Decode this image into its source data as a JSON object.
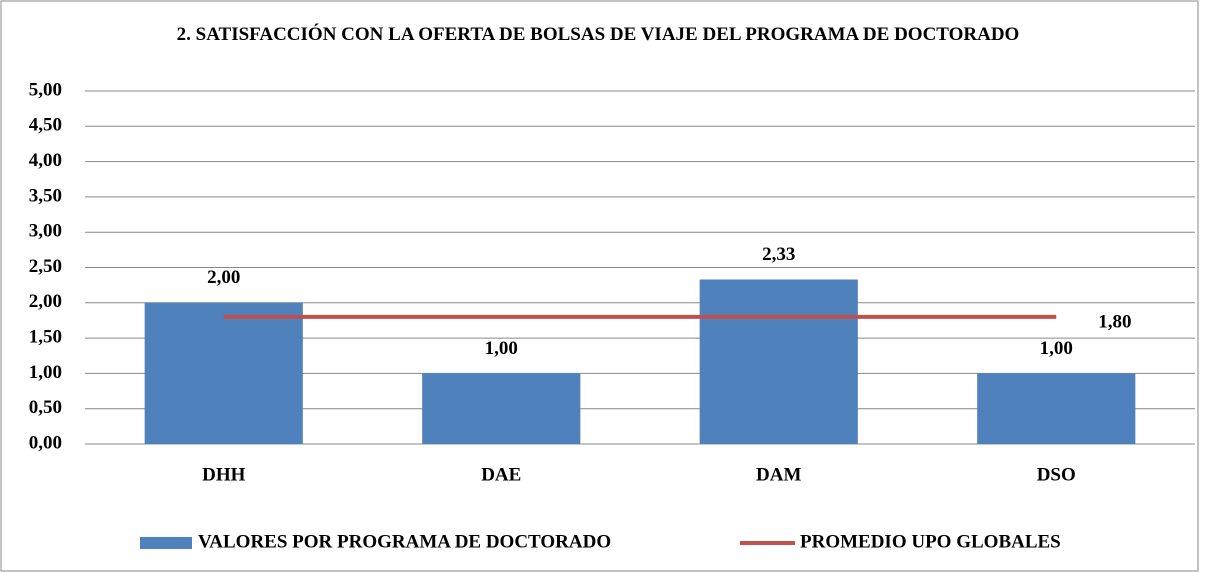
{
  "chart_data": {
    "type": "bar",
    "title": "2. SATISFACCIÓN CON LA OFERTA DE BOLSAS DE VIAJE DEL PROGRAMA DE DOCTORADO",
    "categories": [
      "DHH",
      "DAE",
      "DAM",
      "DSO"
    ],
    "series": [
      {
        "name": "VALORES POR PROGRAMA DE DOCTORADO",
        "type": "bar",
        "color": "#4f81bd",
        "values": [
          2.0,
          1.0,
          2.33,
          1.0
        ],
        "value_labels": [
          "2,00",
          "1,00",
          "2,33",
          "1,00"
        ]
      },
      {
        "name": "PROMEDIO UPO GLOBALES",
        "type": "line",
        "color": "#c0504d",
        "values": [
          1.8,
          1.8,
          1.8,
          1.8
        ],
        "value_labels": [
          null,
          null,
          null,
          "1,80"
        ]
      }
    ],
    "ylim": [
      0,
      5
    ],
    "yticks": [
      {
        "value": 0,
        "label": "0,00"
      },
      {
        "value": 0.5,
        "label": "0,50"
      },
      {
        "value": 1,
        "label": "1,00"
      },
      {
        "value": 1.5,
        "label": "1,50"
      },
      {
        "value": 2,
        "label": "2,00"
      },
      {
        "value": 2.5,
        "label": "2,50"
      },
      {
        "value": 3,
        "label": "3,00"
      },
      {
        "value": 3.5,
        "label": "3,50"
      },
      {
        "value": 4,
        "label": "4,00"
      },
      {
        "value": 4.5,
        "label": "4,50"
      },
      {
        "value": 5,
        "label": "5,00"
      }
    ],
    "grid": true,
    "legend": "bottom"
  }
}
